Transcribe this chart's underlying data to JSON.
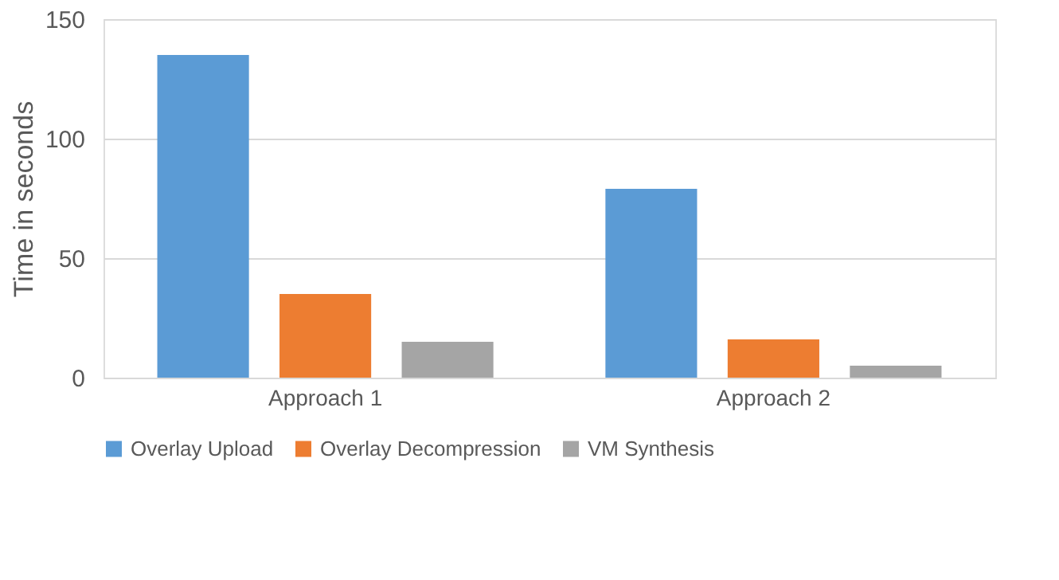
{
  "chart_data": {
    "type": "bar",
    "ylabel": "Time in seconds",
    "categories": [
      "Approach 1",
      "Approach 2"
    ],
    "series": [
      {
        "name": "Overlay Upload",
        "color": "#5b9bd5",
        "values": [
          135,
          79
        ]
      },
      {
        "name": "Overlay Decompression",
        "color": "#ed7d31",
        "values": [
          35,
          16
        ]
      },
      {
        "name": "VM Synthesis",
        "color": "#a5a5a5",
        "values": [
          15,
          5
        ]
      }
    ],
    "ylim": [
      0,
      150
    ],
    "yticks": [
      0,
      50,
      100,
      150
    ],
    "grid": "y",
    "legend": "bottom"
  }
}
